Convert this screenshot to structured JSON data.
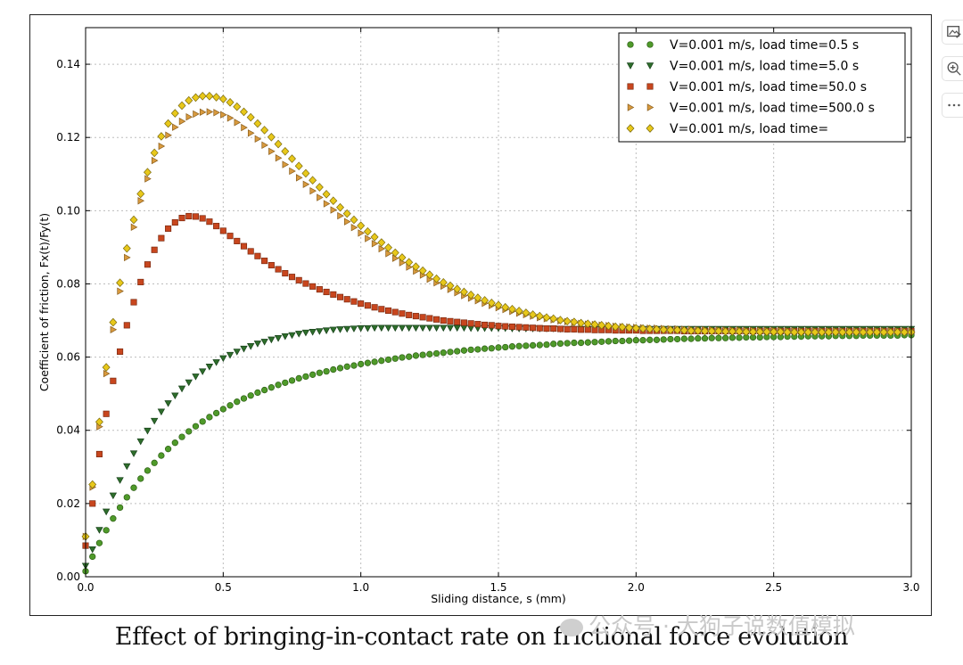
{
  "chart_data": {
    "type": "scatter",
    "xlabel": "Sliding distance, s (mm)",
    "ylabel": "Coefficient of friction, Fx(t)/Fy(t)",
    "xlim": [
      0,
      3.0
    ],
    "ylim": [
      0,
      0.15
    ],
    "x_ticks": [
      "0.0",
      "0.5",
      "1.0",
      "1.5",
      "2.0",
      "2.5",
      "3.0"
    ],
    "y_ticks": [
      "0.00",
      "0.02",
      "0.04",
      "0.06",
      "0.08",
      "0.10",
      "0.12",
      "0.14"
    ],
    "grid": true,
    "legend_position": "top-right",
    "x_step": 0.025,
    "series": [
      {
        "name": "V=0.001 m/s, load time=0.5 s",
        "marker": "circle",
        "color": "#4f9a2a",
        "edge": "#2d5e15",
        "values": [
          0.0015,
          0.0055,
          0.0092,
          0.0127,
          0.0159,
          0.0189,
          0.0217,
          0.0243,
          0.0268,
          0.029,
          0.0311,
          0.0331,
          0.0349,
          0.0366,
          0.0382,
          0.0397,
          0.0411,
          0.0424,
          0.0436,
          0.0447,
          0.0458,
          0.0468,
          0.0478,
          0.0487,
          0.0495,
          0.0503,
          0.051,
          0.0517,
          0.0524,
          0.053,
          0.0536,
          0.0542,
          0.0547,
          0.0552,
          0.0557,
          0.0561,
          0.0566,
          0.057,
          0.0574,
          0.0577,
          0.0581,
          0.0584,
          0.0587,
          0.059,
          0.0593,
          0.0596,
          0.0599,
          0.0601,
          0.0604,
          0.0606,
          0.0608,
          0.061,
          0.0612,
          0.0614,
          0.0616,
          0.0618,
          0.062,
          0.0621,
          0.0623,
          0.0624,
          0.0626,
          0.0627,
          0.0629,
          0.063,
          0.0631,
          0.0632,
          0.0633,
          0.0634,
          0.0636,
          0.0637,
          0.0638,
          0.0639,
          0.0639,
          0.064,
          0.0641,
          0.0642,
          0.0643,
          0.0644,
          0.0644,
          0.0645,
          0.0646,
          0.0646,
          0.0647,
          0.0647,
          0.0648,
          0.0649,
          0.0649,
          0.065,
          0.065,
          0.0651,
          0.0651,
          0.0652,
          0.0652,
          0.0652,
          0.0653,
          0.0653,
          0.0654,
          0.0654,
          0.0654,
          0.0655,
          0.0655,
          0.0655,
          0.0656,
          0.0656,
          0.0656,
          0.0657,
          0.0657,
          0.0657,
          0.0657,
          0.0658,
          0.0658,
          0.0658,
          0.0658,
          0.0659,
          0.0659,
          0.0659,
          0.0659,
          0.0659,
          0.0659,
          0.066,
          0.066
        ]
      },
      {
        "name": "V=0.001 m/s, load time=5.0 s",
        "marker": "triangle-down",
        "color": "#2e6e2b",
        "edge": "#17401a",
        "values": [
          0.003,
          0.0075,
          0.0128,
          0.0178,
          0.0222,
          0.0264,
          0.0302,
          0.0337,
          0.037,
          0.0399,
          0.0426,
          0.0451,
          0.0474,
          0.0495,
          0.0514,
          0.0531,
          0.0547,
          0.0561,
          0.0574,
          0.0586,
          0.0597,
          0.0606,
          0.0615,
          0.0623,
          0.063,
          0.0637,
          0.0642,
          0.0648,
          0.0652,
          0.0657,
          0.066,
          0.0664,
          0.0667,
          0.0669,
          0.0671,
          0.0673,
          0.0675,
          0.0676,
          0.0677,
          0.0678,
          0.0679,
          0.0679,
          0.068,
          0.068,
          0.068,
          0.068,
          0.068,
          0.068,
          0.068,
          0.068,
          0.068,
          0.068,
          0.068,
          0.068,
          0.068,
          0.068,
          0.0679,
          0.0679,
          0.0679,
          0.0679,
          0.0679,
          0.0679,
          0.0678,
          0.0678,
          0.0678,
          0.0678,
          0.0678,
          0.0678,
          0.0678,
          0.0677,
          0.0677,
          0.0677,
          0.0677,
          0.0677,
          0.0677,
          0.0677,
          0.0677,
          0.0677,
          0.0677,
          0.0677,
          0.0677,
          0.0677,
          0.0677,
          0.0677,
          0.0677,
          0.0677,
          0.0677,
          0.0677,
          0.0677,
          0.0677,
          0.0677,
          0.0677,
          0.0677,
          0.0677,
          0.0677,
          0.0677,
          0.0677,
          0.0677,
          0.0677,
          0.0677,
          0.0677,
          0.0677,
          0.0677,
          0.0677,
          0.0677,
          0.0677,
          0.0677,
          0.0677,
          0.0677,
          0.0677,
          0.0677,
          0.0677,
          0.0677,
          0.0677,
          0.0677,
          0.0677,
          0.0677,
          0.0677,
          0.0677,
          0.0677,
          0.0677
        ]
      },
      {
        "name": "V=0.001 m/s, load time=50.0 s",
        "marker": "square",
        "color": "#c8461e",
        "edge": "#7a2a10",
        "values": [
          0.0085,
          0.02,
          0.0335,
          0.0445,
          0.0535,
          0.0615,
          0.0687,
          0.075,
          0.0805,
          0.0853,
          0.0893,
          0.0925,
          0.0951,
          0.0968,
          0.098,
          0.0985,
          0.0984,
          0.0979,
          0.097,
          0.0958,
          0.0945,
          0.0931,
          0.0917,
          0.0903,
          0.0889,
          0.0876,
          0.0863,
          0.0851,
          0.084,
          0.0829,
          0.0819,
          0.081,
          0.0801,
          0.0793,
          0.0785,
          0.0778,
          0.0771,
          0.0764,
          0.0758,
          0.0752,
          0.0746,
          0.0741,
          0.0736,
          0.0731,
          0.0727,
          0.0723,
          0.0719,
          0.0715,
          0.0712,
          0.0709,
          0.0706,
          0.0703,
          0.07,
          0.0698,
          0.0696,
          0.0694,
          0.0692,
          0.069,
          0.0688,
          0.0687,
          0.0685,
          0.0684,
          0.0683,
          0.0682,
          0.0681,
          0.068,
          0.0679,
          0.0678,
          0.0678,
          0.0677,
          0.0676,
          0.0676,
          0.0675,
          0.0675,
          0.0674,
          0.0674,
          0.0674,
          0.0673,
          0.0673,
          0.0673,
          0.0673,
          0.0672,
          0.0672,
          0.0672,
          0.0672,
          0.0672,
          0.0672,
          0.0671,
          0.0671,
          0.0671,
          0.0671,
          0.0671,
          0.0671,
          0.0671,
          0.0671,
          0.0671,
          0.0671,
          0.0671,
          0.0671,
          0.0671,
          0.0671,
          0.0671,
          0.0671,
          0.0671,
          0.0671,
          0.0671,
          0.0671,
          0.0671,
          0.0671,
          0.0671,
          0.0671,
          0.0671,
          0.0671,
          0.0671,
          0.0671,
          0.0671,
          0.0671,
          0.0671,
          0.0671,
          0.0671,
          0.0671
        ]
      },
      {
        "name": "V=0.001 m/s, load time=500.0 s",
        "marker": "triangle-right",
        "color": "#d89a3e",
        "edge": "#8a5e1d",
        "values": [
          0.011,
          0.0245,
          0.041,
          0.0555,
          0.0675,
          0.078,
          0.0872,
          0.0955,
          0.1027,
          0.1087,
          0.1137,
          0.1176,
          0.1206,
          0.1228,
          0.1244,
          0.1256,
          0.1264,
          0.1269,
          0.127,
          0.1268,
          0.1262,
          0.1253,
          0.1241,
          0.1227,
          0.1212,
          0.1196,
          0.1179,
          0.1162,
          0.1144,
          0.1126,
          0.1108,
          0.109,
          0.1072,
          0.1054,
          0.1036,
          0.1019,
          0.1002,
          0.0986,
          0.097,
          0.0954,
          0.0939,
          0.0924,
          0.091,
          0.0896,
          0.0883,
          0.087,
          0.0858,
          0.0846,
          0.0835,
          0.0824,
          0.0813,
          0.0803,
          0.0794,
          0.0785,
          0.0776,
          0.0768,
          0.0761,
          0.0754,
          0.0747,
          0.0741,
          0.0735,
          0.073,
          0.0725,
          0.072,
          0.0716,
          0.0712,
          0.0708,
          0.0705,
          0.0702,
          0.0699,
          0.0697,
          0.0694,
          0.0692,
          0.069,
          0.0689,
          0.0687,
          0.0686,
          0.0684,
          0.0683,
          0.0682,
          0.0681,
          0.068,
          0.0679,
          0.0679,
          0.0678,
          0.0677,
          0.0677,
          0.0676,
          0.0676,
          0.0675,
          0.0675,
          0.0675,
          0.0674,
          0.0674,
          0.0674,
          0.0674,
          0.0673,
          0.0673,
          0.0673,
          0.0673,
          0.0673,
          0.0673,
          0.0672,
          0.0672,
          0.0672,
          0.0672,
          0.0672,
          0.0672,
          0.0672,
          0.0672,
          0.0672,
          0.0672,
          0.0672,
          0.0672,
          0.0672,
          0.0672,
          0.0672,
          0.0672,
          0.0672,
          0.0672,
          0.0672
        ]
      },
      {
        "name": "V=0.001 m/s, load time=",
        "marker": "diamond",
        "color": "#e8c81a",
        "edge": "#7a6a0e",
        "values": [
          0.011,
          0.0252,
          0.0423,
          0.0572,
          0.0695,
          0.0803,
          0.0897,
          0.0975,
          0.1046,
          0.1105,
          0.1158,
          0.1203,
          0.1238,
          0.1266,
          0.1287,
          0.1301,
          0.1309,
          0.1313,
          0.1313,
          0.131,
          0.1305,
          0.1296,
          0.1284,
          0.127,
          0.1255,
          0.1238,
          0.122,
          0.1201,
          0.1182,
          0.1162,
          0.1142,
          0.1122,
          0.1102,
          0.1083,
          0.1064,
          0.1045,
          0.1027,
          0.1009,
          0.0992,
          0.0975,
          0.0959,
          0.0943,
          0.0928,
          0.0913,
          0.0899,
          0.0885,
          0.0872,
          0.0859,
          0.0847,
          0.0836,
          0.0825,
          0.0814,
          0.0804,
          0.0795,
          0.0786,
          0.0778,
          0.077,
          0.0762,
          0.0755,
          0.0748,
          0.0742,
          0.0736,
          0.0731,
          0.0726,
          0.0721,
          0.0716,
          0.0712,
          0.0708,
          0.0705,
          0.0701,
          0.0698,
          0.0696,
          0.0693,
          0.0691,
          0.0689,
          0.0687,
          0.0685,
          0.0683,
          0.0682,
          0.068,
          0.0679,
          0.0678,
          0.0677,
          0.0676,
          0.0675,
          0.0674,
          0.0674,
          0.0673,
          0.0672,
          0.0672,
          0.0671,
          0.0671,
          0.0671,
          0.067,
          0.067,
          0.067,
          0.0669,
          0.0669,
          0.0669,
          0.0669,
          0.0669,
          0.0669,
          0.0668,
          0.0668,
          0.0668,
          0.0668,
          0.0668,
          0.0668,
          0.0668,
          0.0668,
          0.0668,
          0.0668,
          0.0668,
          0.0668,
          0.0668,
          0.0668,
          0.0668,
          0.0668,
          0.0668,
          0.0668,
          0.0668
        ]
      }
    ]
  },
  "caption": "Effect of bringing-in-contact rate on frictional force evolution",
  "watermark": "公众号 · 大狗子说数值模拟",
  "toolbar": [
    {
      "name": "image-edit-icon"
    },
    {
      "name": "zoom-in-icon"
    },
    {
      "name": "more-icon"
    }
  ]
}
